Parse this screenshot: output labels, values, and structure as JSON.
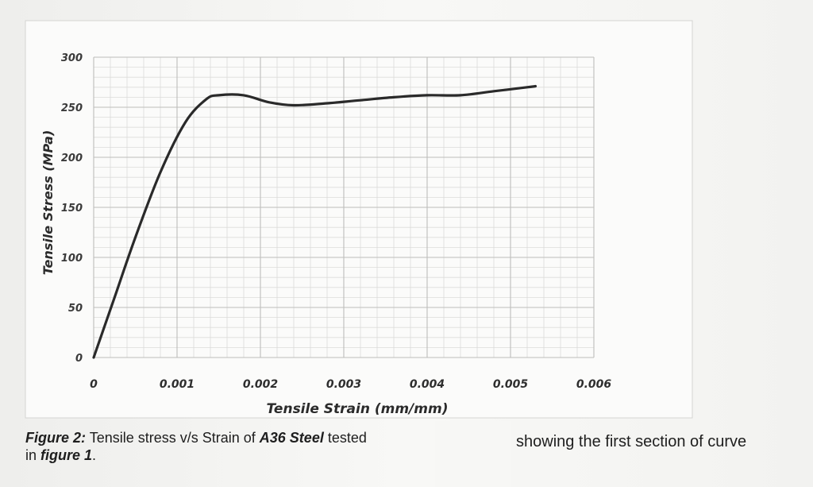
{
  "chart_data": {
    "type": "line",
    "xlabel": "Tensile Strain (mm/mm)",
    "ylabel": "Tensile Stress (MPa)",
    "xlim": [
      0,
      0.006
    ],
    "ylim": [
      0,
      300
    ],
    "x_ticks": [
      "0",
      "0.001",
      "0.002",
      "0.003",
      "0.004",
      "0.005",
      "0.006"
    ],
    "y_ticks": [
      "0",
      "50",
      "100",
      "150",
      "200",
      "250",
      "300"
    ],
    "grid": true,
    "series": [
      {
        "color": "#2a2a2a",
        "points": [
          [
            0,
            0
          ],
          [
            0.00025,
            60
          ],
          [
            0.0005,
            120
          ],
          [
            0.0008,
            185
          ],
          [
            0.0011,
            235
          ],
          [
            0.00135,
            258
          ],
          [
            0.0015,
            262
          ],
          [
            0.0018,
            262
          ],
          [
            0.0021,
            255
          ],
          [
            0.0024,
            252
          ],
          [
            0.0028,
            254
          ],
          [
            0.0032,
            257
          ],
          [
            0.0036,
            260
          ],
          [
            0.004,
            262
          ],
          [
            0.0044,
            262
          ],
          [
            0.0048,
            266
          ],
          [
            0.0052,
            270
          ],
          [
            0.0053,
            271
          ]
        ]
      }
    ]
  },
  "caption": {
    "label": "Figure 2:",
    "text1": " Tensile stress v/s Strain of ",
    "material": "A36 Steel",
    "text2": " tested",
    "line2_prefix": "in ",
    "line2_ref": "figure 1",
    "line2_suffix": "."
  },
  "side_note": "showing the first section of curve"
}
